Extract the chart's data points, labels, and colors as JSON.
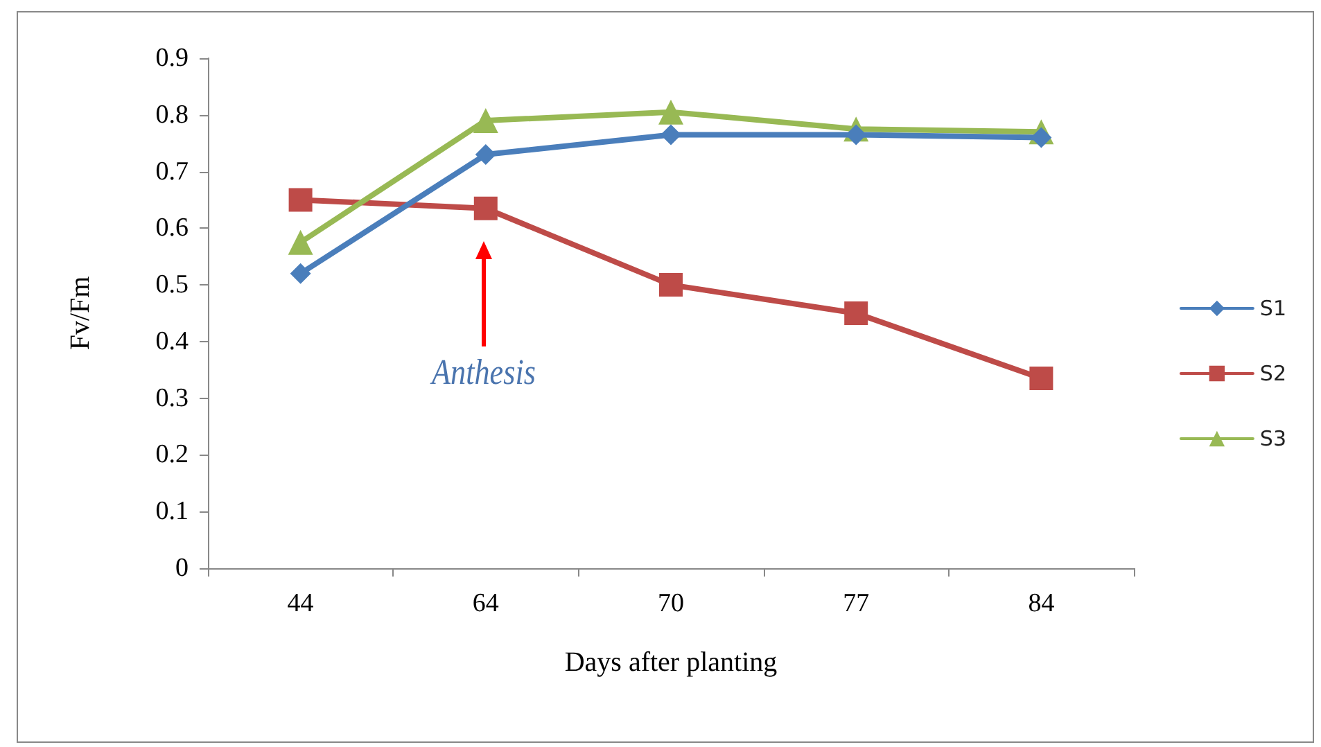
{
  "chart_data": {
    "type": "line",
    "xlabel": "Days after planting",
    "ylabel": "Fv/Fm",
    "categories": [
      "44",
      "64",
      "70",
      "77",
      "84"
    ],
    "series": [
      {
        "name": "S1",
        "color": "#4a7ebb",
        "marker": "diamond",
        "values": [
          0.52,
          0.73,
          0.765,
          0.765,
          0.76
        ]
      },
      {
        "name": "S2",
        "color": "#be4b48",
        "marker": "square",
        "values": [
          0.65,
          0.635,
          0.5,
          0.45,
          0.335
        ]
      },
      {
        "name": "S3",
        "color": "#98b954",
        "marker": "triangle",
        "values": [
          0.575,
          0.79,
          0.805,
          0.775,
          0.77
        ]
      }
    ],
    "ylim": [
      0,
      0.9
    ],
    "yticks": [
      0,
      0.1,
      0.2,
      0.3,
      0.4,
      0.5,
      0.6,
      0.7,
      0.8,
      0.9
    ],
    "grid": false,
    "legend": "right",
    "line_style": "solid",
    "annotations": [
      "Anthesis"
    ]
  }
}
